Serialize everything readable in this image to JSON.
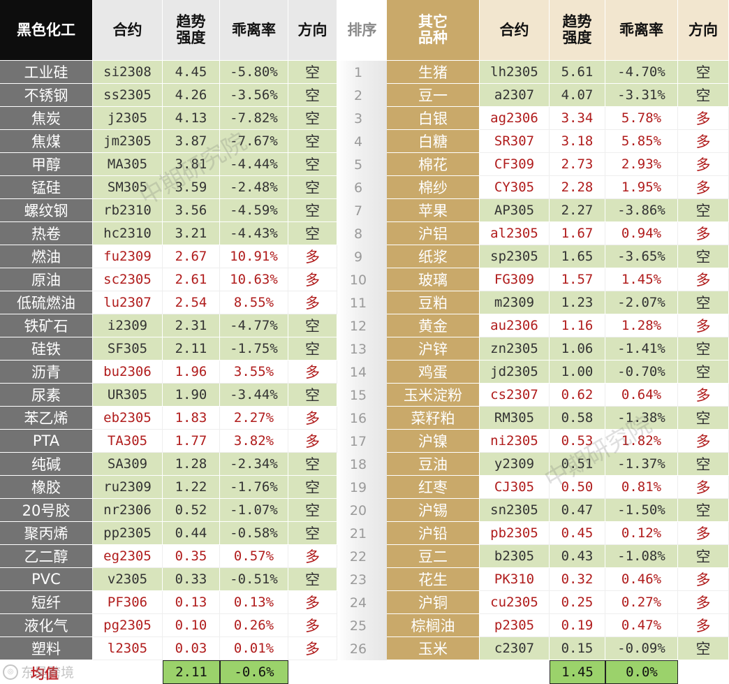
{
  "header": {
    "left_category": "黑色化工",
    "contract": "合约",
    "strength": "趋势强度",
    "deviation": "乖离率",
    "direction": "方向",
    "rank": "排序",
    "right_category": "其它品种"
  },
  "left_rows": [
    {
      "name": "工业硅",
      "contract": "si2308",
      "strength": "4.45",
      "deviation": "-5.80%",
      "direction": "空"
    },
    {
      "name": "不锈钢",
      "contract": "ss2305",
      "strength": "4.26",
      "deviation": "-3.56%",
      "direction": "空"
    },
    {
      "name": "焦炭",
      "contract": "j2305",
      "strength": "4.13",
      "deviation": "-7.82%",
      "direction": "空"
    },
    {
      "name": "焦煤",
      "contract": "jm2305",
      "strength": "3.87",
      "deviation": "-7.67%",
      "direction": "空"
    },
    {
      "name": "甲醇",
      "contract": "MA305",
      "strength": "3.81",
      "deviation": "-4.44%",
      "direction": "空"
    },
    {
      "name": "锰硅",
      "contract": "SM305",
      "strength": "3.59",
      "deviation": "-2.48%",
      "direction": "空"
    },
    {
      "name": "螺纹钢",
      "contract": "rb2310",
      "strength": "3.56",
      "deviation": "-4.59%",
      "direction": "空"
    },
    {
      "name": "热卷",
      "contract": "hc2310",
      "strength": "3.21",
      "deviation": "-4.43%",
      "direction": "空"
    },
    {
      "name": "燃油",
      "contract": "fu2309",
      "strength": "2.67",
      "deviation": "10.91%",
      "direction": "多"
    },
    {
      "name": "原油",
      "contract": "sc2305",
      "strength": "2.61",
      "deviation": "10.63%",
      "direction": "多"
    },
    {
      "name": "低硫燃油",
      "contract": "lu2307",
      "strength": "2.54",
      "deviation": "8.55%",
      "direction": "多"
    },
    {
      "name": "铁矿石",
      "contract": "i2309",
      "strength": "2.31",
      "deviation": "-4.77%",
      "direction": "空"
    },
    {
      "name": "硅铁",
      "contract": "SF305",
      "strength": "2.11",
      "deviation": "-1.75%",
      "direction": "空"
    },
    {
      "name": "沥青",
      "contract": "bu2306",
      "strength": "1.96",
      "deviation": "3.55%",
      "direction": "多"
    },
    {
      "name": "尿素",
      "contract": "UR305",
      "strength": "1.90",
      "deviation": "-3.44%",
      "direction": "空"
    },
    {
      "name": "苯乙烯",
      "contract": "eb2305",
      "strength": "1.83",
      "deviation": "2.27%",
      "direction": "多"
    },
    {
      "name": "PTA",
      "contract": "TA305",
      "strength": "1.77",
      "deviation": "3.82%",
      "direction": "多"
    },
    {
      "name": "纯碱",
      "contract": "SA309",
      "strength": "1.28",
      "deviation": "-2.34%",
      "direction": "空"
    },
    {
      "name": "橡胶",
      "contract": "ru2309",
      "strength": "1.22",
      "deviation": "-1.76%",
      "direction": "空"
    },
    {
      "name": "20号胶",
      "contract": "nr2306",
      "strength": "0.52",
      "deviation": "-1.07%",
      "direction": "空"
    },
    {
      "name": "聚丙烯",
      "contract": "pp2305",
      "strength": "0.44",
      "deviation": "-0.58%",
      "direction": "空"
    },
    {
      "name": "乙二醇",
      "contract": "eg2305",
      "strength": "0.35",
      "deviation": "0.57%",
      "direction": "多"
    },
    {
      "name": "PVC",
      "contract": "v2305",
      "strength": "0.33",
      "deviation": "-0.51%",
      "direction": "空"
    },
    {
      "name": "短纤",
      "contract": "PF306",
      "strength": "0.13",
      "deviation": "0.13%",
      "direction": "多"
    },
    {
      "name": "液化气",
      "contract": "pg2305",
      "strength": "0.10",
      "deviation": "0.26%",
      "direction": "多"
    },
    {
      "name": "塑料",
      "contract": "l2305",
      "strength": "0.03",
      "deviation": "0.01%",
      "direction": "多"
    }
  ],
  "ranks": [
    "1",
    "2",
    "3",
    "4",
    "5",
    "6",
    "7",
    "8",
    "9",
    "10",
    "11",
    "12",
    "13",
    "14",
    "15",
    "16",
    "17",
    "18",
    "19",
    "20",
    "21",
    "22",
    "23",
    "24",
    "25",
    "26"
  ],
  "right_rows": [
    {
      "name": "生猪",
      "contract": "lh2305",
      "strength": "5.61",
      "deviation": "-4.70%",
      "direction": "空"
    },
    {
      "name": "豆一",
      "contract": "a2307",
      "strength": "4.07",
      "deviation": "-3.31%",
      "direction": "空"
    },
    {
      "name": "白银",
      "contract": "ag2306",
      "strength": "3.34",
      "deviation": "5.78%",
      "direction": "多"
    },
    {
      "name": "白糖",
      "contract": "SR307",
      "strength": "3.18",
      "deviation": "5.85%",
      "direction": "多"
    },
    {
      "name": "棉花",
      "contract": "CF309",
      "strength": "2.73",
      "deviation": "2.93%",
      "direction": "多"
    },
    {
      "name": "棉纱",
      "contract": "CY305",
      "strength": "2.28",
      "deviation": "1.95%",
      "direction": "多"
    },
    {
      "name": "苹果",
      "contract": "AP305",
      "strength": "2.27",
      "deviation": "-3.86%",
      "direction": "空"
    },
    {
      "name": "沪铝",
      "contract": "al2305",
      "strength": "1.67",
      "deviation": "0.94%",
      "direction": "多"
    },
    {
      "name": "纸浆",
      "contract": "sp2305",
      "strength": "1.65",
      "deviation": "-3.65%",
      "direction": "空"
    },
    {
      "name": "玻璃",
      "contract": "FG309",
      "strength": "1.57",
      "deviation": "1.45%",
      "direction": "多"
    },
    {
      "name": "豆粕",
      "contract": "m2309",
      "strength": "1.23",
      "deviation": "-2.07%",
      "direction": "空"
    },
    {
      "name": "黄金",
      "contract": "au2306",
      "strength": "1.16",
      "deviation": "1.28%",
      "direction": "多"
    },
    {
      "name": "沪锌",
      "contract": "zn2305",
      "strength": "1.06",
      "deviation": "-1.41%",
      "direction": "空"
    },
    {
      "name": "鸡蛋",
      "contract": "jd2305",
      "strength": "1.00",
      "deviation": "-0.70%",
      "direction": "空"
    },
    {
      "name": "玉米淀粉",
      "contract": "cs2307",
      "strength": "0.62",
      "deviation": "0.64%",
      "direction": "多"
    },
    {
      "name": "菜籽粕",
      "contract": "RM305",
      "strength": "0.58",
      "deviation": "-1.38%",
      "direction": "空"
    },
    {
      "name": "沪镍",
      "contract": "ni2305",
      "strength": "0.53",
      "deviation": "1.82%",
      "direction": "多"
    },
    {
      "name": "豆油",
      "contract": "y2309",
      "strength": "0.51",
      "deviation": "-1.37%",
      "direction": "空"
    },
    {
      "name": "红枣",
      "contract": "CJ305",
      "strength": "0.50",
      "deviation": "0.81%",
      "direction": "多"
    },
    {
      "name": "沪锡",
      "contract": "sn2305",
      "strength": "0.47",
      "deviation": "-1.50%",
      "direction": "空"
    },
    {
      "name": "沪铅",
      "contract": "pb2305",
      "strength": "0.45",
      "deviation": "0.12%",
      "direction": "多"
    },
    {
      "name": "豆二",
      "contract": "b2305",
      "strength": "0.43",
      "deviation": "-1.08%",
      "direction": "空"
    },
    {
      "name": "花生",
      "contract": "PK310",
      "strength": "0.32",
      "deviation": "0.46%",
      "direction": "多"
    },
    {
      "name": "沪铜",
      "contract": "cu2305",
      "strength": "0.25",
      "deviation": "0.27%",
      "direction": "多"
    },
    {
      "name": "棕榈油",
      "contract": "p2305",
      "strength": "0.19",
      "deviation": "0.47%",
      "direction": "多"
    },
    {
      "name": "玉米",
      "contract": "c2307",
      "strength": "0.15",
      "deviation": "-0.09%",
      "direction": "空"
    }
  ],
  "footer": {
    "label": "均值",
    "left_avg_strength": "2.11",
    "left_avg_deviation": "-0.6%",
    "right_avg_strength": "1.45",
    "right_avg_deviation": "0.0%"
  },
  "watermarks": [
    "中期研究院",
    "中期研究院"
  ],
  "logo_text": "东吴跨境",
  "colors": {
    "short_fill": "#d8e4bc",
    "long_text": "#b01c1c",
    "left_name_fill": "#737373",
    "right_name_fill": "#c9a96a",
    "avg_fill": "#9bd26b"
  }
}
